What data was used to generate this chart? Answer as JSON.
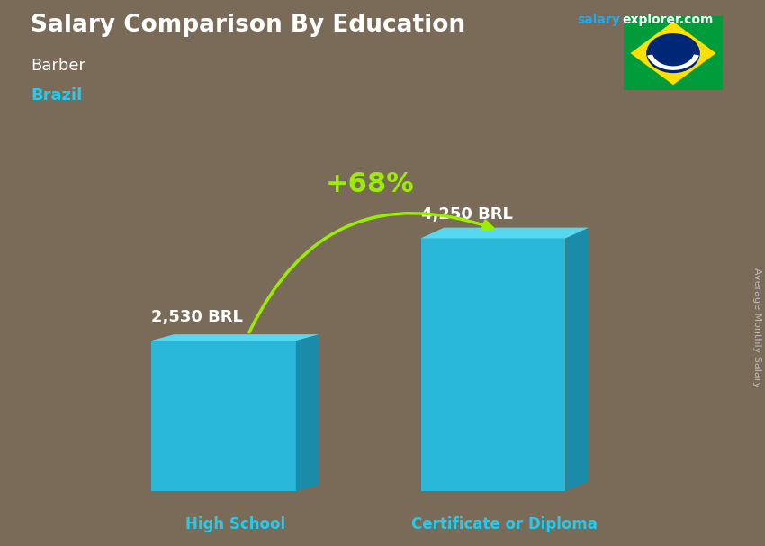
{
  "title": "Salary Comparison By Education",
  "subtitle_job": "Barber",
  "subtitle_country": "Brazil",
  "site_name": "salary",
  "site_domain": "explorer.com",
  "ylabel": "Average Monthly Salary",
  "categories": [
    "High School",
    "Certificate or Diploma"
  ],
  "values": [
    2530,
    4250
  ],
  "labels": [
    "2,530 BRL",
    "4,250 BRL"
  ],
  "pct_change": "+68%",
  "bar_face_color": "#29B8D9",
  "bar_right_color": "#1A8CAA",
  "bar_top_color": "#55D8F0",
  "bg_color": "#7a6a58",
  "title_color": "#ffffff",
  "job_color": "#ffffff",
  "country_color": "#22CCEE",
  "label_color": "#ffffff",
  "x_label_color": "#22CCEE",
  "pct_color": "#99EE00",
  "arrow_color": "#99EE00",
  "site_salary_color": "#22AAEE",
  "site_explorer_color": "#ffffff",
  "ylabel_color": "#bbbbbb",
  "ylim": [
    0,
    5500
  ],
  "flag_colors": {
    "green": "#009c3b",
    "yellow": "#ffdf00",
    "blue": "#002776",
    "white": "#ffffff"
  }
}
